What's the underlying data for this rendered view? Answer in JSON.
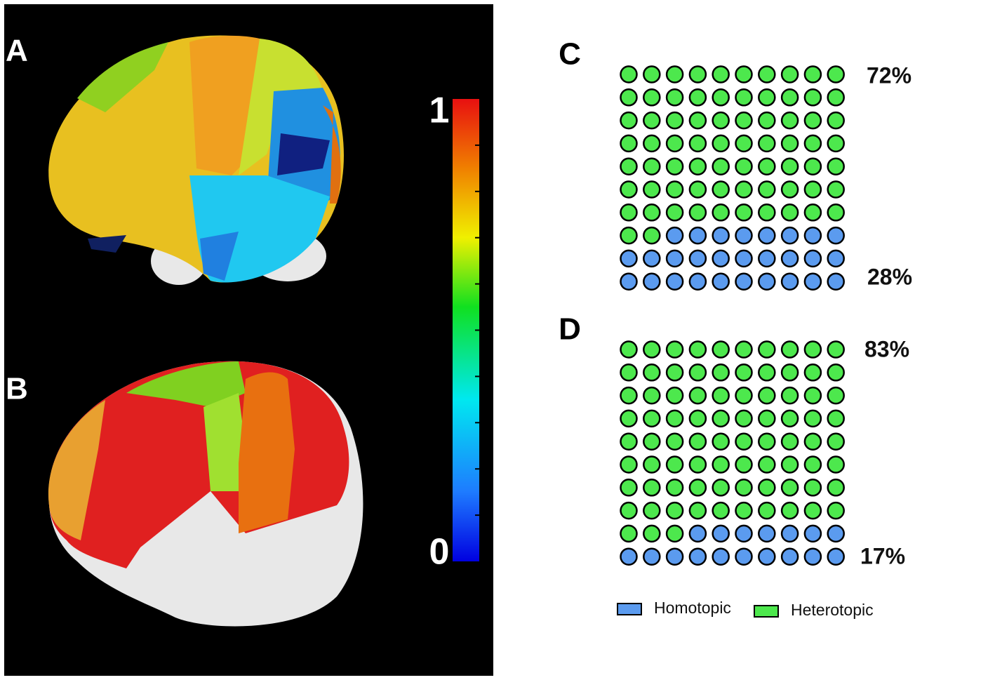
{
  "panel_labels": [
    "A",
    "B"
  ],
  "colorbar": {
    "lim": [
      0,
      1
    ],
    "ticks": [
      0,
      1
    ],
    "minor_ticks": [
      0.1,
      0.2,
      0.3,
      0.4,
      0.5,
      0.6,
      0.7,
      0.8,
      0.9
    ]
  },
  "legend": [
    {
      "name": "Homotopic",
      "color": "#5b9bef"
    },
    {
      "name": "Heterotopic",
      "color": "#4de84d"
    }
  ],
  "chart_data": [
    {
      "type": "waffle",
      "title": "C",
      "values": [
        28,
        72
      ],
      "value_labels": [
        "28%",
        "72%"
      ]
    },
    {
      "type": "waffle",
      "title": "D",
      "values": [
        17,
        83
      ],
      "value_labels": [
        "17%",
        "83%"
      ]
    }
  ]
}
